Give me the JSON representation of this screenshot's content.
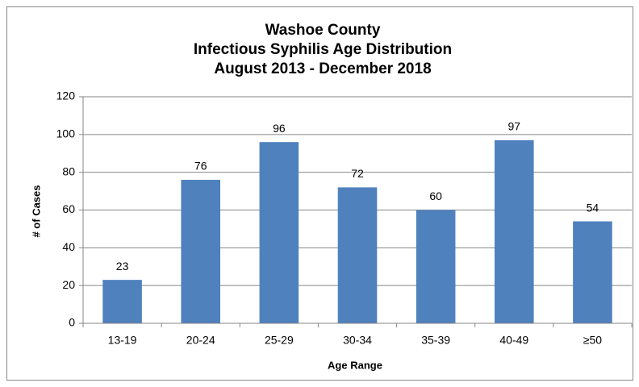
{
  "chart_data": {
    "type": "bar",
    "title": [
      "Washoe County",
      "Infectious Syphilis Age Distribution",
      "August 2013 - December 2018"
    ],
    "categories": [
      "13-19",
      "20-24",
      "25-29",
      "30-34",
      "35-39",
      "40-49",
      "≥50"
    ],
    "values": [
      23,
      76,
      96,
      72,
      60,
      97,
      54
    ],
    "color": "#4f81bd",
    "x_label": "Age Range",
    "y_label": "# of Cases",
    "ylim": [
      0,
      120
    ],
    "yticks": [
      0,
      20,
      40,
      60,
      80,
      100,
      120
    ],
    "grid": true
  }
}
